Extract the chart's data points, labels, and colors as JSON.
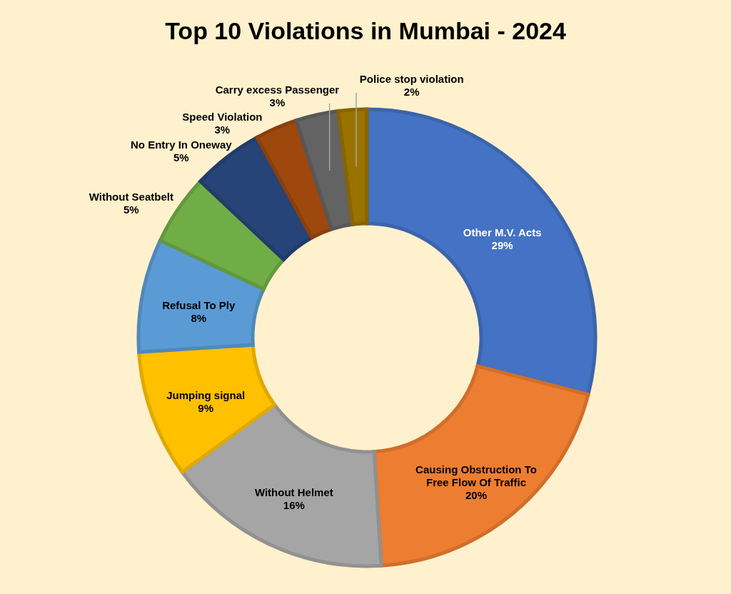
{
  "chart_data": {
    "type": "donut",
    "title": "Top 10 Violations in Mumbai - 2024",
    "categories": [
      "Other M.V. Acts",
      "Causing Obstruction To Free Flow Of Traffic",
      "Without Helmet",
      "Jumping signal",
      "Refusal To Ply",
      "Without Seatbelt",
      "No Entry In Oneway",
      "Speed Violation",
      "Carry excess Passenger",
      "Police stop violation"
    ],
    "values": [
      29,
      20,
      16,
      9,
      8,
      5,
      5,
      3,
      3,
      2
    ],
    "colors": [
      "#4472c4",
      "#ed7d31",
      "#a5a5a5",
      "#ffc000",
      "#5b9bd5",
      "#70ad47",
      "#264478",
      "#9e480e",
      "#636363",
      "#997300"
    ],
    "value_labels": [
      "29%",
      "20%",
      "16%",
      "9%",
      "8%",
      "5%",
      "5%",
      "3%",
      "3%",
      "2%"
    ]
  }
}
